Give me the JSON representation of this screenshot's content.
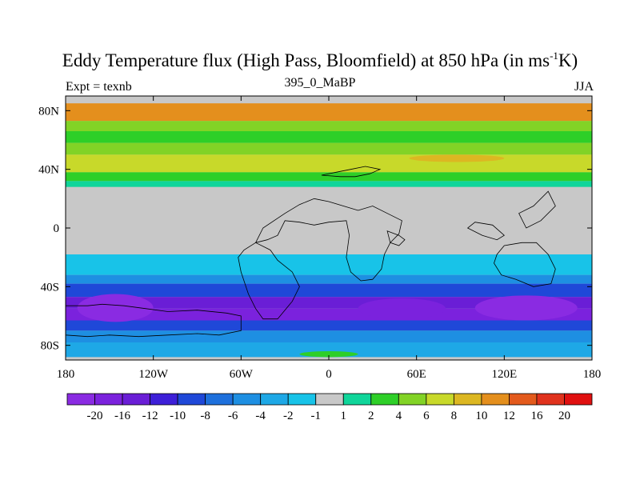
{
  "title": {
    "main": "Eddy Temperature flux (High Pass, Bloomfield) at 850 hPa (in ms",
    "exponent": "-1",
    "end": "K)"
  },
  "left_label": "Expt = texnb",
  "center_label": "395_0_MaBP",
  "right_label": "JJA",
  "map": {
    "projection": "cylindrical equidistant",
    "lon_range": [
      -180,
      180
    ],
    "lat_range": [
      -90,
      90
    ],
    "x_ticks": [
      {
        "lon": -180,
        "label": "180"
      },
      {
        "lon": -120,
        "label": "120W"
      },
      {
        "lon": -60,
        "label": "60W"
      },
      {
        "lon": 0,
        "label": "0"
      },
      {
        "lon": 60,
        "label": "60E"
      },
      {
        "lon": 120,
        "label": "120E"
      },
      {
        "lon": 180,
        "label": "180"
      }
    ],
    "y_ticks": [
      {
        "lat": 80,
        "label": "80N"
      },
      {
        "lat": 40,
        "label": "40N"
      },
      {
        "lat": 0,
        "label": "0"
      },
      {
        "lat": -40,
        "label": "40S"
      },
      {
        "lat": -80,
        "label": "80S"
      }
    ],
    "missing_color": "#c8c8c8"
  },
  "colorbar": {
    "colors": [
      "#8a2be2",
      "#7b22dd",
      "#6a1ed6",
      "#3d1fd8",
      "#1f48d8",
      "#1e70dc",
      "#1e8fe2",
      "#1ea8e6",
      "#18c3e8",
      "#c8c8c8",
      "#10d59a",
      "#2ecf28",
      "#82d326",
      "#c8d92a",
      "#dcb722",
      "#e48f1d",
      "#e35a1c",
      "#e0321d",
      "#e01010"
    ],
    "labels": [
      "-20",
      "-16",
      "-12",
      "-10",
      "-8",
      "-6",
      "-4",
      "-2",
      "-1",
      "1",
      "2",
      "4",
      "6",
      "8",
      "10",
      "12",
      "16",
      "20"
    ]
  },
  "field_bands": [
    {
      "lat": [
        73,
        85
      ],
      "level": 15
    },
    {
      "lat": [
        66,
        73
      ],
      "level": 12
    },
    {
      "lat": [
        58,
        66
      ],
      "level": 11
    },
    {
      "lat": [
        50,
        58
      ],
      "level": 12
    },
    {
      "lat": [
        38,
        50
      ],
      "level": 13
    },
    {
      "lat": [
        32,
        38
      ],
      "level": 11
    },
    {
      "lat": [
        28,
        32
      ],
      "level": 10
    },
    {
      "lat": [
        -32,
        -18
      ],
      "level": 8
    },
    {
      "lat": [
        -38,
        -32
      ],
      "level": 6
    },
    {
      "lat": [
        -47,
        -38
      ],
      "level": 4
    },
    {
      "lat": [
        -55,
        -47
      ],
      "level": 2
    },
    {
      "lat": [
        -63,
        -55
      ],
      "level": 1
    },
    {
      "lat": [
        -70,
        -63
      ],
      "level": 4
    },
    {
      "lat": [
        -78,
        -70
      ],
      "level": 6
    },
    {
      "lat": [
        -88,
        -78
      ],
      "level": 7
    }
  ],
  "field_blobs": [
    {
      "lon": [
        -172,
        -120
      ],
      "lat": [
        -64,
        -45
      ],
      "level": 0
    },
    {
      "lon": [
        100,
        170
      ],
      "lat": [
        -63,
        -46
      ],
      "level": 0
    },
    {
      "lon": [
        20,
        80
      ],
      "lat": [
        -62,
        -48
      ],
      "level": 1
    },
    {
      "lon": [
        55,
        120
      ],
      "lat": [
        45,
        50
      ],
      "level": 14
    },
    {
      "lon": [
        -20,
        20
      ],
      "lat": [
        -88,
        -84
      ],
      "level": 11
    }
  ],
  "land_outlines": [
    [
      [
        -180,
        -53
      ],
      [
        -165,
        -53
      ],
      [
        -155,
        -52
      ],
      [
        -140,
        -53
      ],
      [
        -125,
        -55
      ],
      [
        -110,
        -57
      ],
      [
        -90,
        -56
      ],
      [
        -70,
        -58
      ],
      [
        -60,
        -60
      ],
      [
        -60,
        -70
      ],
      [
        -75,
        -73
      ],
      [
        -90,
        -72
      ],
      [
        -110,
        -73
      ],
      [
        -130,
        -74
      ],
      [
        -150,
        -73
      ],
      [
        -165,
        -74
      ],
      [
        -180,
        -73
      ]
    ],
    [
      [
        -50,
        -10
      ],
      [
        -42,
        -8
      ],
      [
        -35,
        -5
      ],
      [
        -30,
        5
      ],
      [
        -20,
        4
      ],
      [
        -10,
        2
      ],
      [
        0,
        4
      ],
      [
        12,
        5
      ],
      [
        14,
        -5
      ],
      [
        12,
        -20
      ],
      [
        15,
        -30
      ],
      [
        22,
        -36
      ],
      [
        30,
        -35
      ],
      [
        36,
        -28
      ],
      [
        38,
        -18
      ],
      [
        42,
        -10
      ],
      [
        48,
        -4
      ],
      [
        50,
        5
      ],
      [
        40,
        10
      ],
      [
        30,
        15
      ],
      [
        20,
        12
      ],
      [
        10,
        15
      ],
      [
        0,
        18
      ],
      [
        -10,
        20
      ],
      [
        -20,
        16
      ],
      [
        -30,
        10
      ],
      [
        -45,
        0
      ]
    ],
    [
      [
        -50,
        -10
      ],
      [
        -58,
        -15
      ],
      [
        -62,
        -20
      ],
      [
        -60,
        -30
      ],
      [
        -55,
        -45
      ],
      [
        -50,
        -55
      ],
      [
        -45,
        -62
      ],
      [
        -35,
        -62
      ],
      [
        -25,
        -50
      ],
      [
        -20,
        -40
      ],
      [
        -25,
        -30
      ],
      [
        -35,
        -22
      ],
      [
        -40,
        -15
      ]
    ],
    [
      [
        120,
        -12
      ],
      [
        132,
        -10
      ],
      [
        142,
        -10
      ],
      [
        150,
        -18
      ],
      [
        155,
        -28
      ],
      [
        152,
        -38
      ],
      [
        140,
        -40
      ],
      [
        128,
        -35
      ],
      [
        118,
        -32
      ],
      [
        113,
        -24
      ],
      [
        115,
        -18
      ]
    ],
    [
      [
        -5,
        36
      ],
      [
        5,
        38
      ],
      [
        15,
        40
      ],
      [
        25,
        42
      ],
      [
        35,
        40
      ],
      [
        28,
        37
      ],
      [
        18,
        35
      ],
      [
        8,
        35
      ]
    ],
    [
      [
        40,
        -2
      ],
      [
        48,
        -5
      ],
      [
        52,
        -8
      ],
      [
        48,
        -12
      ],
      [
        42,
        -10
      ]
    ],
    [
      [
        95,
        0
      ],
      [
        105,
        -5
      ],
      [
        115,
        -8
      ],
      [
        120,
        -5
      ],
      [
        112,
        2
      ],
      [
        100,
        4
      ]
    ],
    [
      [
        130,
        10
      ],
      [
        140,
        15
      ],
      [
        150,
        25
      ],
      [
        155,
        15
      ],
      [
        145,
        5
      ],
      [
        135,
        0
      ]
    ]
  ]
}
